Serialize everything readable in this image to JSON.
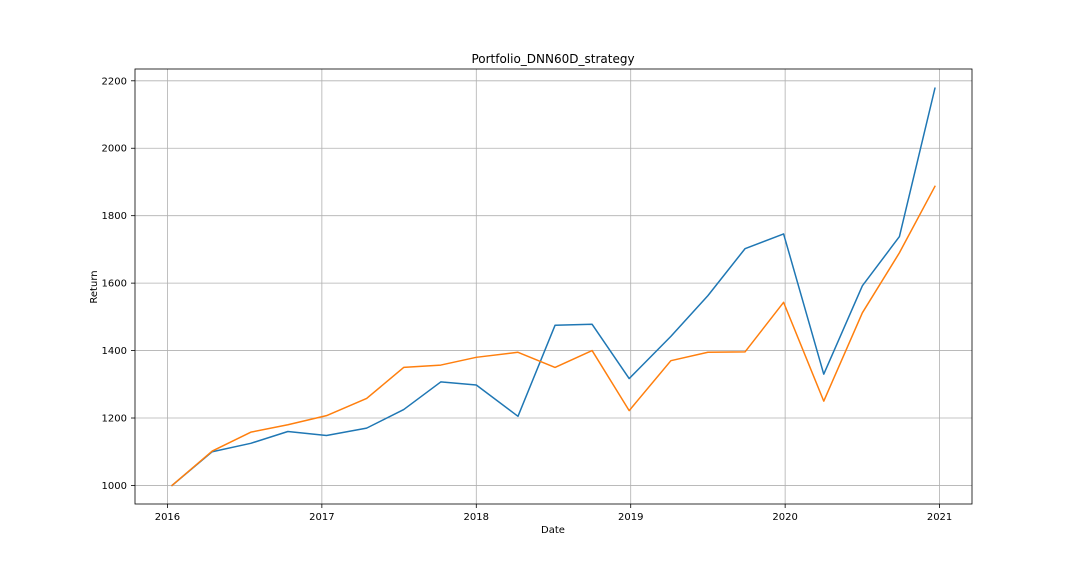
{
  "chart_data": {
    "type": "line",
    "title": "Portfolio_DNN60D_strategy",
    "xlabel": "Date",
    "ylabel": "Return",
    "x_ticks": [
      2016,
      2017,
      2018,
      2019,
      2020,
      2021
    ],
    "y_ticks": [
      1000,
      1200,
      1400,
      1600,
      1800,
      2000,
      2200
    ],
    "xlim": [
      2015.79,
      2021.21
    ],
    "ylim": [
      945,
      2235
    ],
    "grid": true,
    "x": [
      2016.03,
      2016.29,
      2016.54,
      2016.78,
      2017.03,
      2017.29,
      2017.53,
      2017.77,
      2018.0,
      2018.27,
      2018.51,
      2018.75,
      2018.99,
      2019.26,
      2019.5,
      2019.74,
      2019.99,
      2020.25,
      2020.5,
      2020.74,
      2020.97
    ],
    "series": [
      {
        "color": "#1f77b4",
        "values": [
          1000,
          1100,
          1125,
          1160,
          1148,
          1170,
          1225,
          1307,
          1298,
          1205,
          1475,
          1478,
          1317,
          1442,
          1563,
          1702,
          1746,
          1330,
          1592,
          1738,
          2178
        ]
      },
      {
        "color": "#ff7f0e",
        "values": [
          1000,
          1102,
          1158,
          1180,
          1207,
          1258,
          1350,
          1357,
          1380,
          1395,
          1350,
          1400,
          1222,
          1370,
          1395,
          1396,
          1543,
          1250,
          1512,
          1690,
          1887
        ]
      }
    ]
  }
}
